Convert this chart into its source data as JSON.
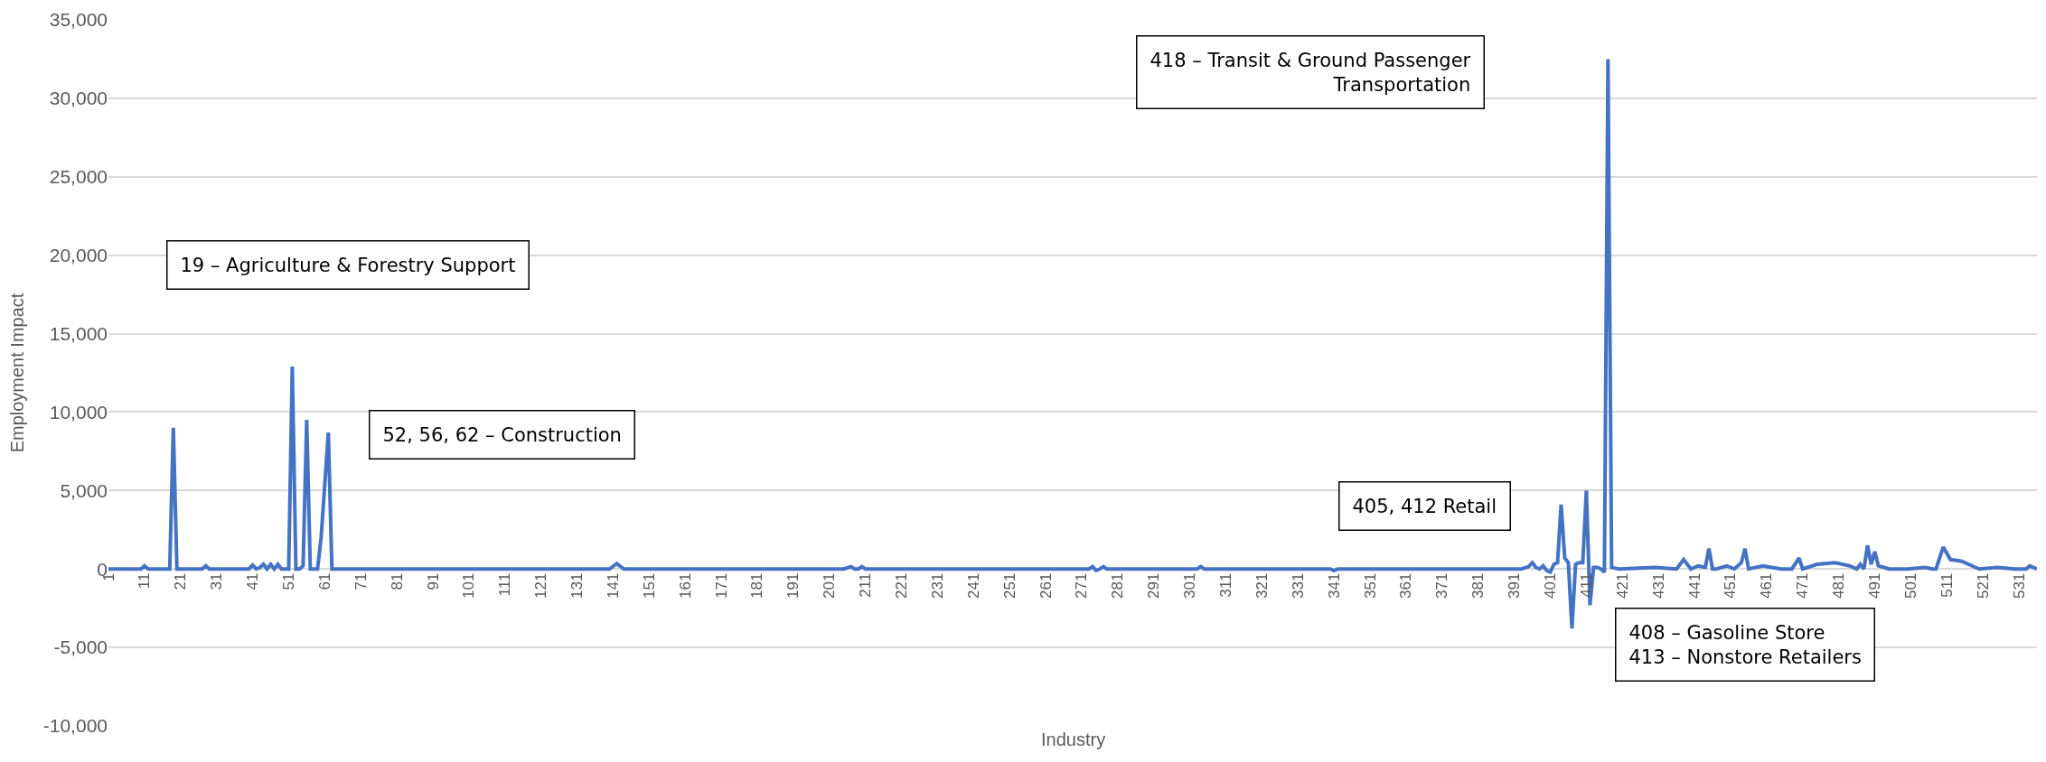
{
  "chart_data": {
    "type": "line",
    "xlabel": "Industry",
    "ylabel": "Employment Impact",
    "series": [
      {
        "color": "#4472c4",
        "x": [
          1,
          10,
          11,
          12,
          18,
          19,
          20,
          27,
          28,
          29,
          40,
          41,
          42,
          43,
          44,
          45,
          46,
          47,
          48,
          49,
          50,
          51,
          52,
          53,
          54,
          55,
          56,
          57,
          59,
          60,
          62,
          63,
          140,
          142,
          144,
          205,
          207,
          208,
          209,
          210,
          211,
          273,
          274,
          275,
          276,
          277,
          278,
          303,
          304,
          305,
          340,
          341,
          342,
          393,
          395,
          396,
          397,
          398,
          399,
          400,
          401,
          402,
          403,
          404,
          405,
          406,
          407,
          408,
          409,
          410,
          411,
          412,
          413,
          414,
          415,
          416,
          417,
          418,
          419,
          420,
          430,
          436,
          438,
          440,
          442,
          444,
          445,
          446,
          447,
          450,
          452,
          454,
          455,
          456,
          460,
          465,
          468,
          470,
          471,
          475,
          480,
          484,
          486,
          487,
          488,
          489,
          490,
          491,
          492,
          495,
          500,
          505,
          507,
          508,
          510,
          512,
          515,
          520,
          525,
          530,
          533,
          534,
          536
        ],
        "values": [
          0,
          0,
          200,
          0,
          0,
          9000,
          0,
          0,
          200,
          0,
          0,
          250,
          0,
          100,
          300,
          0,
          300,
          0,
          300,
          0,
          0,
          0,
          12900,
          0,
          0,
          200,
          9500,
          0,
          0,
          2000,
          8700,
          0,
          0,
          350,
          0,
          0,
          150,
          0,
          0,
          150,
          0,
          0,
          150,
          -100,
          0,
          150,
          0,
          0,
          150,
          0,
          0,
          -100,
          0,
          0,
          150,
          400,
          100,
          0,
          200,
          -100,
          -200,
          300,
          400,
          4100,
          700,
          400,
          -3800,
          300,
          400,
          400,
          5000,
          -2300,
          100,
          100,
          0,
          -200,
          32500,
          100,
          50,
          0,
          100,
          0,
          600,
          0,
          200,
          100,
          1300,
          0,
          0,
          200,
          0,
          400,
          1300,
          0,
          200,
          0,
          0,
          700,
          0,
          300,
          400,
          200,
          0,
          300,
          0,
          1500,
          300,
          1100,
          200,
          0,
          0,
          100,
          0,
          0,
          1400,
          600,
          500,
          0,
          100,
          0,
          0,
          200,
          0
        ]
      }
    ],
    "xlim": [
      1,
      536
    ],
    "xticks": [
      1,
      11,
      21,
      31,
      41,
      51,
      61,
      71,
      81,
      91,
      101,
      111,
      121,
      131,
      141,
      151,
      161,
      171,
      181,
      191,
      201,
      211,
      221,
      231,
      241,
      251,
      261,
      271,
      281,
      291,
      301,
      311,
      321,
      331,
      341,
      351,
      361,
      371,
      381,
      391,
      401,
      411,
      421,
      431,
      441,
      451,
      461,
      471,
      481,
      491,
      501,
      511,
      521,
      531
    ],
    "ylim": [
      -10000,
      35000
    ],
    "yticks": [
      {
        "value": -10000,
        "label": "-10,000"
      },
      {
        "value": -5000,
        "label": "-5,000"
      },
      0,
      {
        "value": 5000,
        "label": "5,000"
      },
      {
        "value": 10000,
        "label": "10,000"
      },
      {
        "value": 15000,
        "label": "15,000"
      },
      {
        "value": 20000,
        "label": "20,000"
      },
      {
        "value": 25000,
        "label": "25,000"
      },
      {
        "value": 30000,
        "label": "30,000"
      },
      {
        "value": 35000,
        "label": "35,000"
      }
    ],
    "grid": "y",
    "marker": "none",
    "line_style": "solid",
    "annotations": [
      "19 – Agriculture & Forestry Support",
      "52, 56, 62 – Construction",
      "418 – Transit & Ground Passenger\nTransportation",
      "405, 412 Retail",
      "408 – Gasoline Store\n413 – Nonstore Retailers"
    ]
  }
}
